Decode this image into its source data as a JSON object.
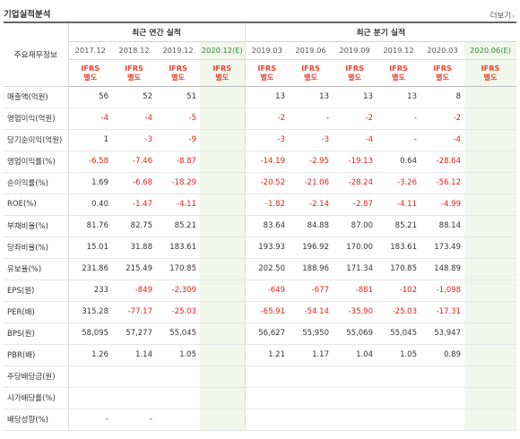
{
  "header": {
    "title": "기업실적분석",
    "more_label": "더보기",
    "more_arrow": "›"
  },
  "table": {
    "row_header_label": "주요재무정보",
    "groups": [
      {
        "label": "최근 연간 실적"
      },
      {
        "label": "최근 분기 실적"
      }
    ],
    "columns": [
      {
        "period": "2017.12",
        "basis": "IFRS 별도"
      },
      {
        "period": "2018.12",
        "basis": "IFRS 별도"
      },
      {
        "period": "2019.12",
        "basis": "IFRS 별도"
      },
      {
        "period": "2020.12(E)",
        "basis": "IFRS 별도"
      },
      {
        "period": "2019.03",
        "basis": "IFRS 별도"
      },
      {
        "period": "2019.06",
        "basis": "IFRS 별도"
      },
      {
        "period": "2019.09",
        "basis": "IFRS 별도"
      },
      {
        "period": "2019.12",
        "basis": "IFRS 별도"
      },
      {
        "period": "2020.03",
        "basis": "IFRS 별도"
      },
      {
        "period": "2020.06(E)",
        "basis": "IFRS 별도"
      }
    ],
    "rows": [
      {
        "label": "매출액(억원)",
        "values": [
          "56",
          "52",
          "51",
          "",
          "13",
          "13",
          "13",
          "13",
          "8",
          ""
        ]
      },
      {
        "label": "영업이익(억원)",
        "values": [
          "-4",
          "-4",
          "-5",
          "",
          "-2",
          "-",
          "-2",
          "-",
          "-2",
          ""
        ]
      },
      {
        "label": "당기순이익(억원)",
        "values": [
          "1",
          "-3",
          "-9",
          "",
          "-3",
          "-3",
          "-4",
          "-",
          "-4",
          ""
        ]
      },
      {
        "label": "영업이익률(%)",
        "values": [
          "-6.58",
          "-7.46",
          "-8.87",
          "",
          "-14.19",
          "-2.95",
          "-19.13",
          "0.64",
          "-28.64",
          ""
        ]
      },
      {
        "label": "순이익률(%)",
        "values": [
          "1.69",
          "-6.68",
          "-18.29",
          "",
          "-20.52",
          "-21.06",
          "-28.24",
          "-3.26",
          "-56.12",
          ""
        ]
      },
      {
        "label": "ROE(%)",
        "values": [
          "0.40",
          "-1.47",
          "-4.11",
          "",
          "-1.82",
          "-2.14",
          "-2.87",
          "-4.11",
          "-4.99",
          ""
        ]
      },
      {
        "label": "부채비율(%)",
        "values": [
          "81.76",
          "82.75",
          "85.21",
          "",
          "83.64",
          "84.88",
          "87.00",
          "85.21",
          "88.14",
          ""
        ]
      },
      {
        "label": "당좌비율(%)",
        "values": [
          "15.01",
          "31.88",
          "183.61",
          "",
          "193.93",
          "196.92",
          "170.00",
          "183.61",
          "173.49",
          ""
        ]
      },
      {
        "label": "유보율(%)",
        "values": [
          "231.86",
          "215.49",
          "170.85",
          "",
          "202.50",
          "188.96",
          "171.34",
          "170.85",
          "148.89",
          ""
        ]
      },
      {
        "label": "EPS(원)",
        "values": [
          "233",
          "-849",
          "-2,309",
          "",
          "-649",
          "-677",
          "-881",
          "-102",
          "-1,098",
          ""
        ]
      },
      {
        "label": "PER(배)",
        "values": [
          "315.28",
          "-77.17",
          "-25.03",
          "",
          "-65.91",
          "-54.14",
          "-35.90",
          "-25.03",
          "-17.31",
          ""
        ]
      },
      {
        "label": "BPS(원)",
        "values": [
          "58,095",
          "57,277",
          "55,045",
          "",
          "56,627",
          "55,950",
          "55,069",
          "55,045",
          "53,947",
          ""
        ]
      },
      {
        "label": "PBR(배)",
        "values": [
          "1.26",
          "1.14",
          "1.05",
          "",
          "1.21",
          "1.17",
          "1.04",
          "1.05",
          "0.89",
          ""
        ]
      },
      {
        "label": "주당배당금(원)",
        "values": [
          "",
          "",
          "",
          "",
          "",
          "",
          "",
          "",
          "",
          ""
        ]
      },
      {
        "label": "시가배당률(%)",
        "values": [
          "",
          "",
          "",
          "",
          "",
          "",
          "",
          "",
          "",
          ""
        ]
      },
      {
        "label": "배당성향(%)",
        "values": [
          "-",
          "-",
          "",
          "",
          "",
          "",
          "",
          "",
          "",
          ""
        ]
      }
    ]
  }
}
